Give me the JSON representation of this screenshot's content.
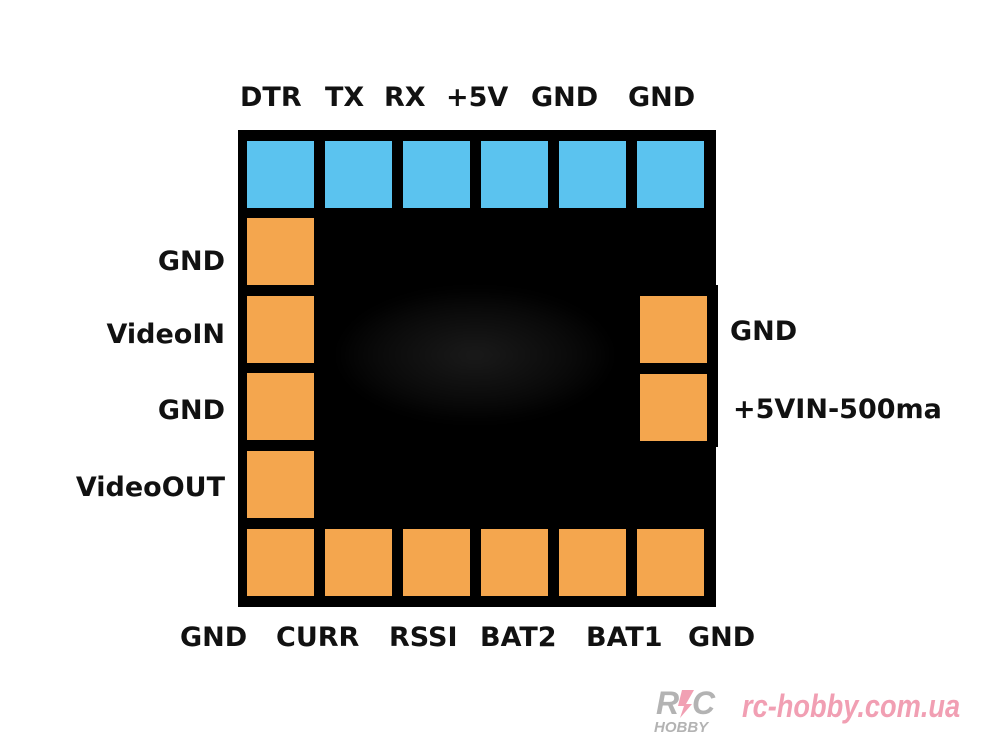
{
  "top_labels": [
    "DTR",
    "TX",
    "RX",
    "+5V",
    "GND",
    "GND"
  ],
  "left_labels": [
    "GND",
    "VideoIN",
    "GND",
    "VideoOUT"
  ],
  "right_labels": [
    "GND",
    "+5VIN-500ma"
  ],
  "bottom_labels": [
    "GND",
    "CURR",
    "RSSI",
    "BAT2",
    "BAT1",
    "GND"
  ],
  "colors": {
    "board": "#000000",
    "top_pads": "#5bc3ef",
    "other_pads": "#f4a64e",
    "watermark": "#ef8fa6"
  },
  "watermark": {
    "logo_text": "R/C HOBBY",
    "url": "rc-hobby.com.ua"
  }
}
